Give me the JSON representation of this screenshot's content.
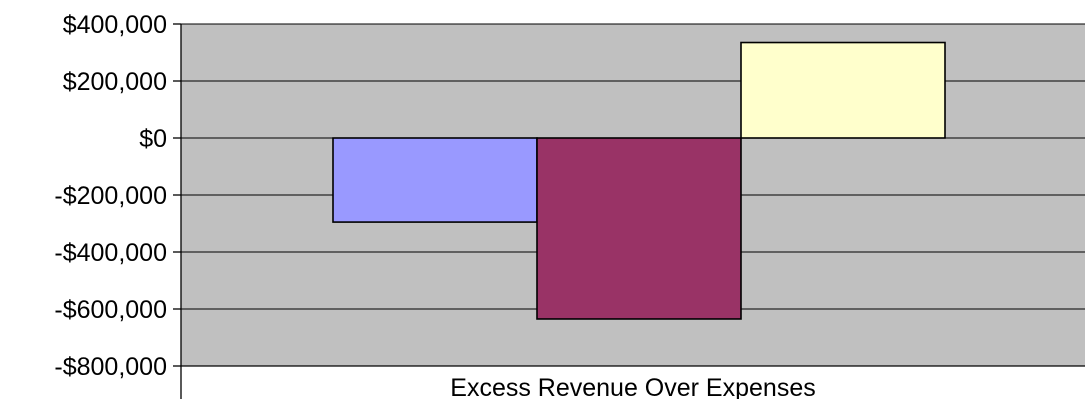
{
  "chart_data": {
    "type": "bar",
    "title": "",
    "xlabel": "",
    "ylabel": "",
    "categories": [
      "Excess Revenue Over Expenses"
    ],
    "series": [
      {
        "values": [
          -295000
        ],
        "color": "#9999ff"
      },
      {
        "values": [
          -635000
        ],
        "color": "#993366"
      },
      {
        "values": [
          335000
        ],
        "color": "#ffffcc"
      }
    ],
    "ylim": [
      -800000,
      400000
    ],
    "yticks": [
      400000,
      200000,
      0,
      -200000,
      -400000,
      -600000,
      -800000
    ],
    "ytick_labels": [
      "$400,000",
      "$200,000",
      "$0",
      "-$200,000",
      "-$400,000",
      "-$600,000",
      "-$800,000"
    ],
    "grid": true,
    "plot_background": "#c0c0c0",
    "bar_outline": "#000000",
    "legend": "none"
  }
}
